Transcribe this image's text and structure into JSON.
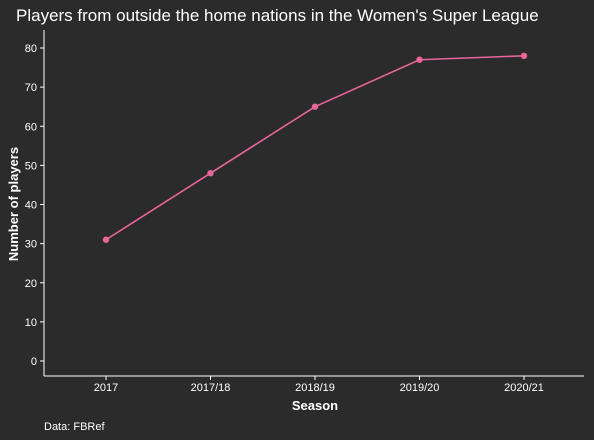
{
  "chart_data": {
    "type": "line",
    "title": "Players from outside the home nations in the Women's Super League",
    "xlabel": "Season",
    "ylabel": "Number of players",
    "caption": "Data: FBRef",
    "categories": [
      "2017",
      "2017/18",
      "2018/19",
      "2019/20",
      "2020/21"
    ],
    "series": [
      {
        "values": [
          31,
          48,
          65,
          77,
          78
        ]
      }
    ],
    "ylim": [
      0,
      80
    ],
    "yticks": [
      0,
      10,
      20,
      30,
      40,
      50,
      60,
      70,
      80
    ],
    "grid": false,
    "line_color": "#e8659a",
    "background": "#2b2b2b"
  }
}
